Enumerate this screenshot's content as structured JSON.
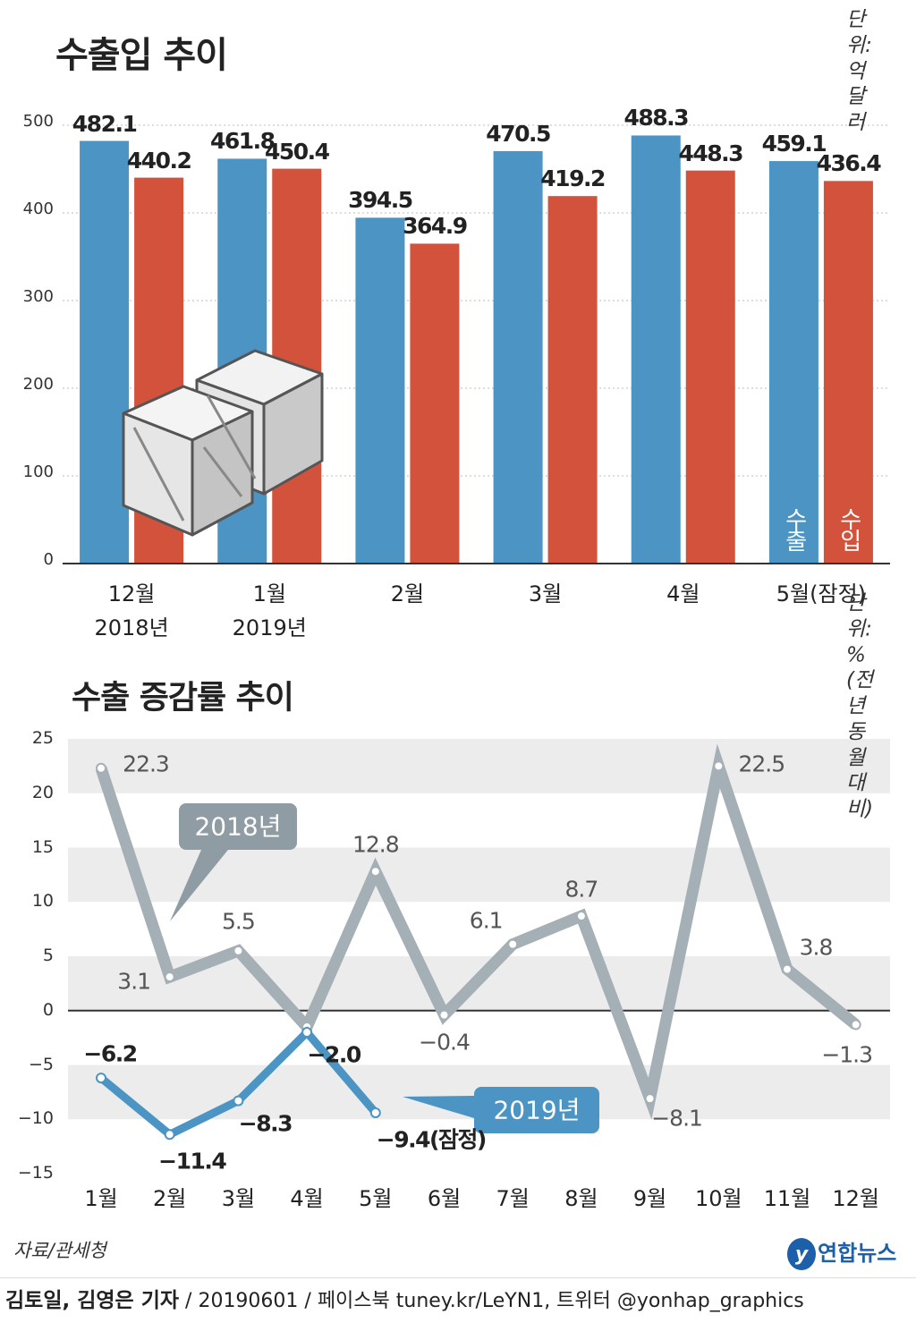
{
  "chart_data": [
    {
      "type": "bar",
      "title": "수출입 추이",
      "unit": "단위: 억 달러",
      "categories": [
        "12월\n2018년",
        "1월\n2019년",
        "2월",
        "3월",
        "4월",
        "5월(잠정)"
      ],
      "series": [
        {
          "name": "수출",
          "color": "#4b94c3",
          "values": [
            482.1,
            461.8,
            394.5,
            470.5,
            488.3,
            459.1
          ]
        },
        {
          "name": "수입",
          "color": "#d3523b",
          "values": [
            440.2,
            450.4,
            364.9,
            419.2,
            448.3,
            436.4
          ]
        }
      ],
      "ylim": [
        0,
        500
      ],
      "yticks": [
        0,
        100,
        200,
        300,
        400,
        500
      ],
      "grid": true
    },
    {
      "type": "line",
      "title": "수출 증감률 추이",
      "unit": "단위: % (전년 동월 대비)",
      "categories": [
        "1월",
        "2월",
        "3월",
        "4월",
        "5월",
        "6월",
        "7월",
        "8월",
        "9월",
        "10월",
        "11월",
        "12월"
      ],
      "series": [
        {
          "name": "2018년",
          "color": "#a4afb6",
          "values": [
            22.3,
            3.1,
            5.5,
            -1.5,
            12.8,
            -0.4,
            6.1,
            8.7,
            -8.1,
            22.5,
            3.8,
            -1.3
          ],
          "value_labels": [
            "22.3",
            "3.1",
            "5.5",
            null,
            "12.8",
            "−0.4",
            "6.1",
            "8.7",
            "−8.1",
            "22.5",
            "3.8",
            "−1.3"
          ]
        },
        {
          "name": "2019년",
          "color": "#4b94c3",
          "values": [
            -6.2,
            -11.4,
            -8.3,
            -2.0,
            -9.4,
            null,
            null,
            null,
            null,
            null,
            null,
            null
          ],
          "value_labels": [
            "−6.2",
            "−11.4",
            "−8.3",
            "−2.0",
            "−9.4(잠정)",
            null,
            null,
            null,
            null,
            null,
            null,
            null
          ]
        }
      ],
      "ylim": [
        -15,
        25
      ],
      "yticks": [
        {
          "value": -15,
          "label": "−15"
        },
        {
          "value": -10,
          "label": "−10"
        },
        {
          "value": -5,
          "label": "−5"
        },
        0,
        5,
        10,
        15,
        20,
        25
      ],
      "grid": true
    }
  ],
  "footer": {
    "source": "자료/관세청",
    "logo": "연합뉴스",
    "credit_names": "김토일, 김영은 기자",
    "credit_rest": " / 20190601 / 페이스북 tuney.kr/LeYN1, 트위터 @yonhap_graphics"
  }
}
